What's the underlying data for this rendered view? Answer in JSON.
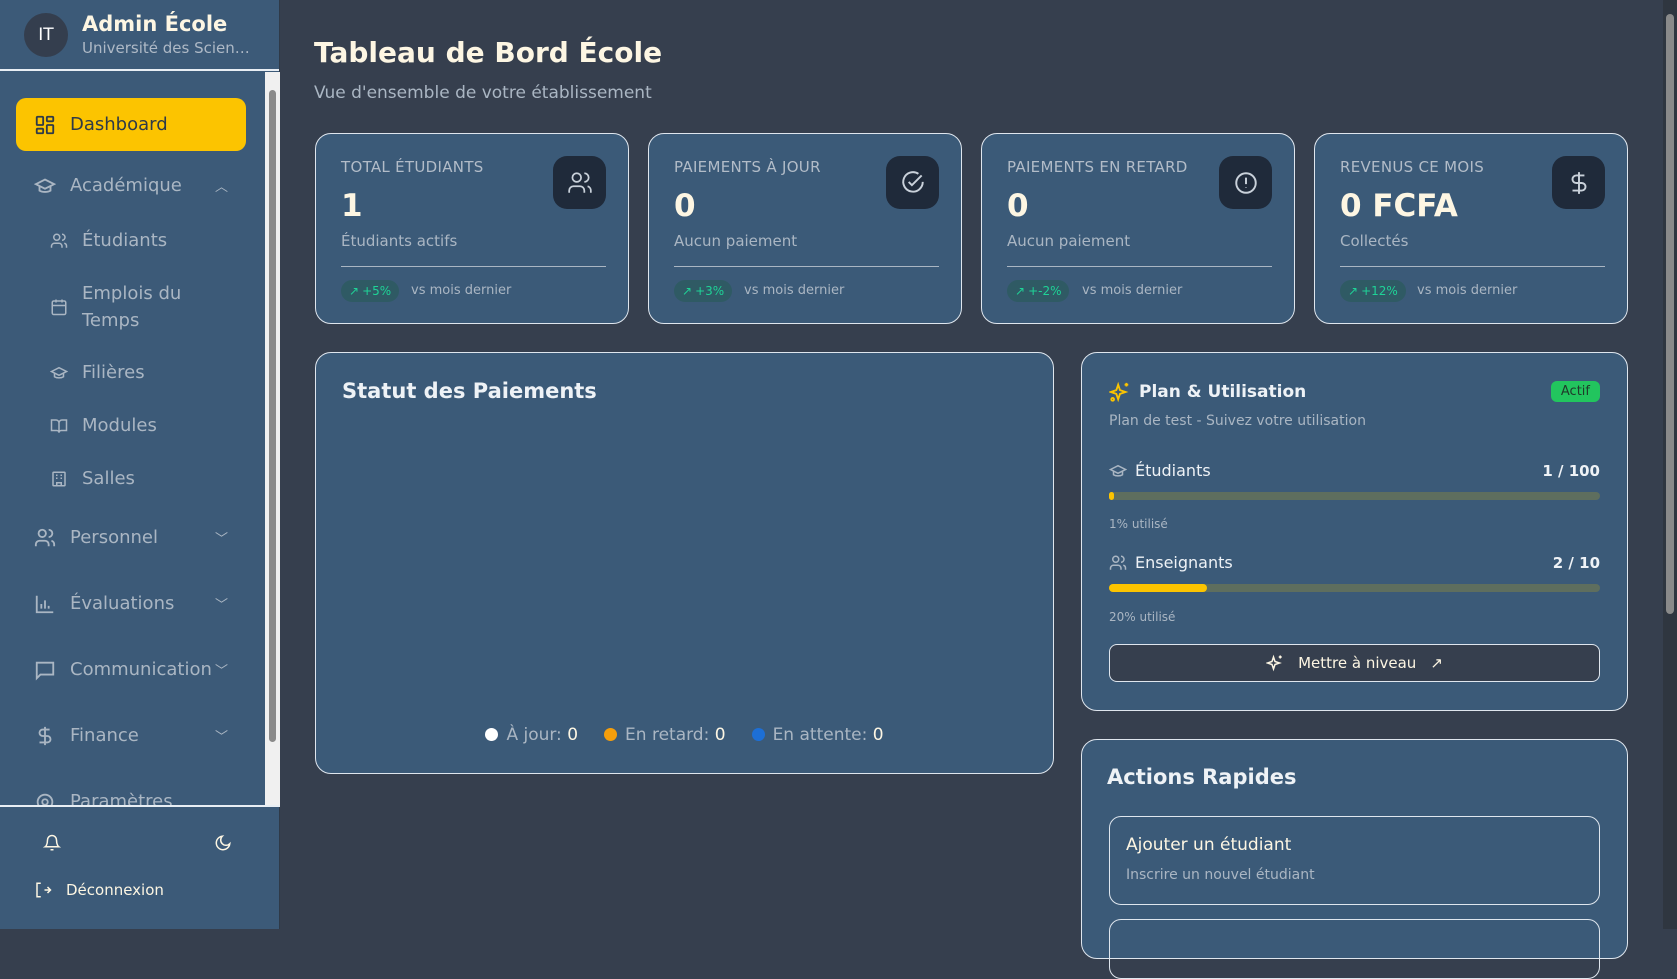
{
  "sidebar": {
    "avatar": "IT",
    "title": "Admin École",
    "subtitle": "Université des Sciences",
    "items": [
      {
        "label": "Dashboard",
        "icon": "dashboard-icon"
      },
      {
        "label": "Académique",
        "icon": "graduation-cap-icon"
      },
      {
        "label": "Étudiants",
        "icon": "users-icon"
      },
      {
        "label": "Emplois du Temps",
        "icon": "calendar-icon"
      },
      {
        "label": "Filières",
        "icon": "graduation-cap-icon"
      },
      {
        "label": "Modules",
        "icon": "book-icon"
      },
      {
        "label": "Salles",
        "icon": "building-icon"
      },
      {
        "label": "Personnel",
        "icon": "users-icon"
      },
      {
        "label": "Évaluations",
        "icon": "bar-chart-icon"
      },
      {
        "label": "Communication",
        "icon": "message-icon"
      },
      {
        "label": "Finance",
        "icon": "dollar-icon"
      },
      {
        "label": "Paramètres",
        "icon": "gear-icon"
      }
    ],
    "logout": "Déconnexion"
  },
  "header": {
    "title": "Tableau de Bord École",
    "subtitle": "Vue d'ensemble de votre établissement"
  },
  "stats": [
    {
      "label": "TOTAL ÉTUDIANTS",
      "value": "1",
      "desc": "Étudiants actifs",
      "trend": "+5%",
      "vs": "vs mois dernier",
      "icon": "users-icon"
    },
    {
      "label": "PAIEMENTS À JOUR",
      "value": "0",
      "desc": "Aucun paiement",
      "trend": "+3%",
      "vs": "vs mois dernier",
      "icon": "check-circle-icon"
    },
    {
      "label": "PAIEMENTS EN RETARD",
      "value": "0",
      "desc": "Aucun paiement",
      "trend": "+-2%",
      "vs": "vs mois dernier",
      "icon": "alert-circle-icon"
    },
    {
      "label": "REVENUS CE MOIS",
      "value": "0 FCFA",
      "desc": "Collectés",
      "trend": "+12%",
      "vs": "vs mois dernier",
      "icon": "dollar-icon"
    }
  ],
  "payments": {
    "title": "Statut des Paiements",
    "legend": [
      {
        "label": "À jour:",
        "value": "0",
        "color": "#ffffff"
      },
      {
        "label": "En retard:",
        "value": "0",
        "color": "#f59e0b"
      },
      {
        "label": "En attente:",
        "value": "0",
        "color": "#1d6fd6"
      }
    ]
  },
  "plan": {
    "title": "Plan & Utilisation",
    "badge": "Actif",
    "subtitle": "Plan de test - Suivez votre utilisation",
    "usage": [
      {
        "label": "Étudiants",
        "count": "1 / 100",
        "percent": 1,
        "used": "1% utilisé"
      },
      {
        "label": "Enseignants",
        "count": "2 / 10",
        "percent": 20,
        "used": "20% utilisé"
      }
    ],
    "upgrade": "Mettre à niveau"
  },
  "actions": {
    "title": "Actions Rapides",
    "items": [
      {
        "title": "Ajouter un étudiant",
        "desc": "Inscrire un nouvel étudiant"
      }
    ]
  },
  "colors": {
    "accent": "#fcc400",
    "card": "#3b5a78",
    "background": "#363f4e",
    "trend": "#1fd397",
    "badge": "#22c55e"
  }
}
